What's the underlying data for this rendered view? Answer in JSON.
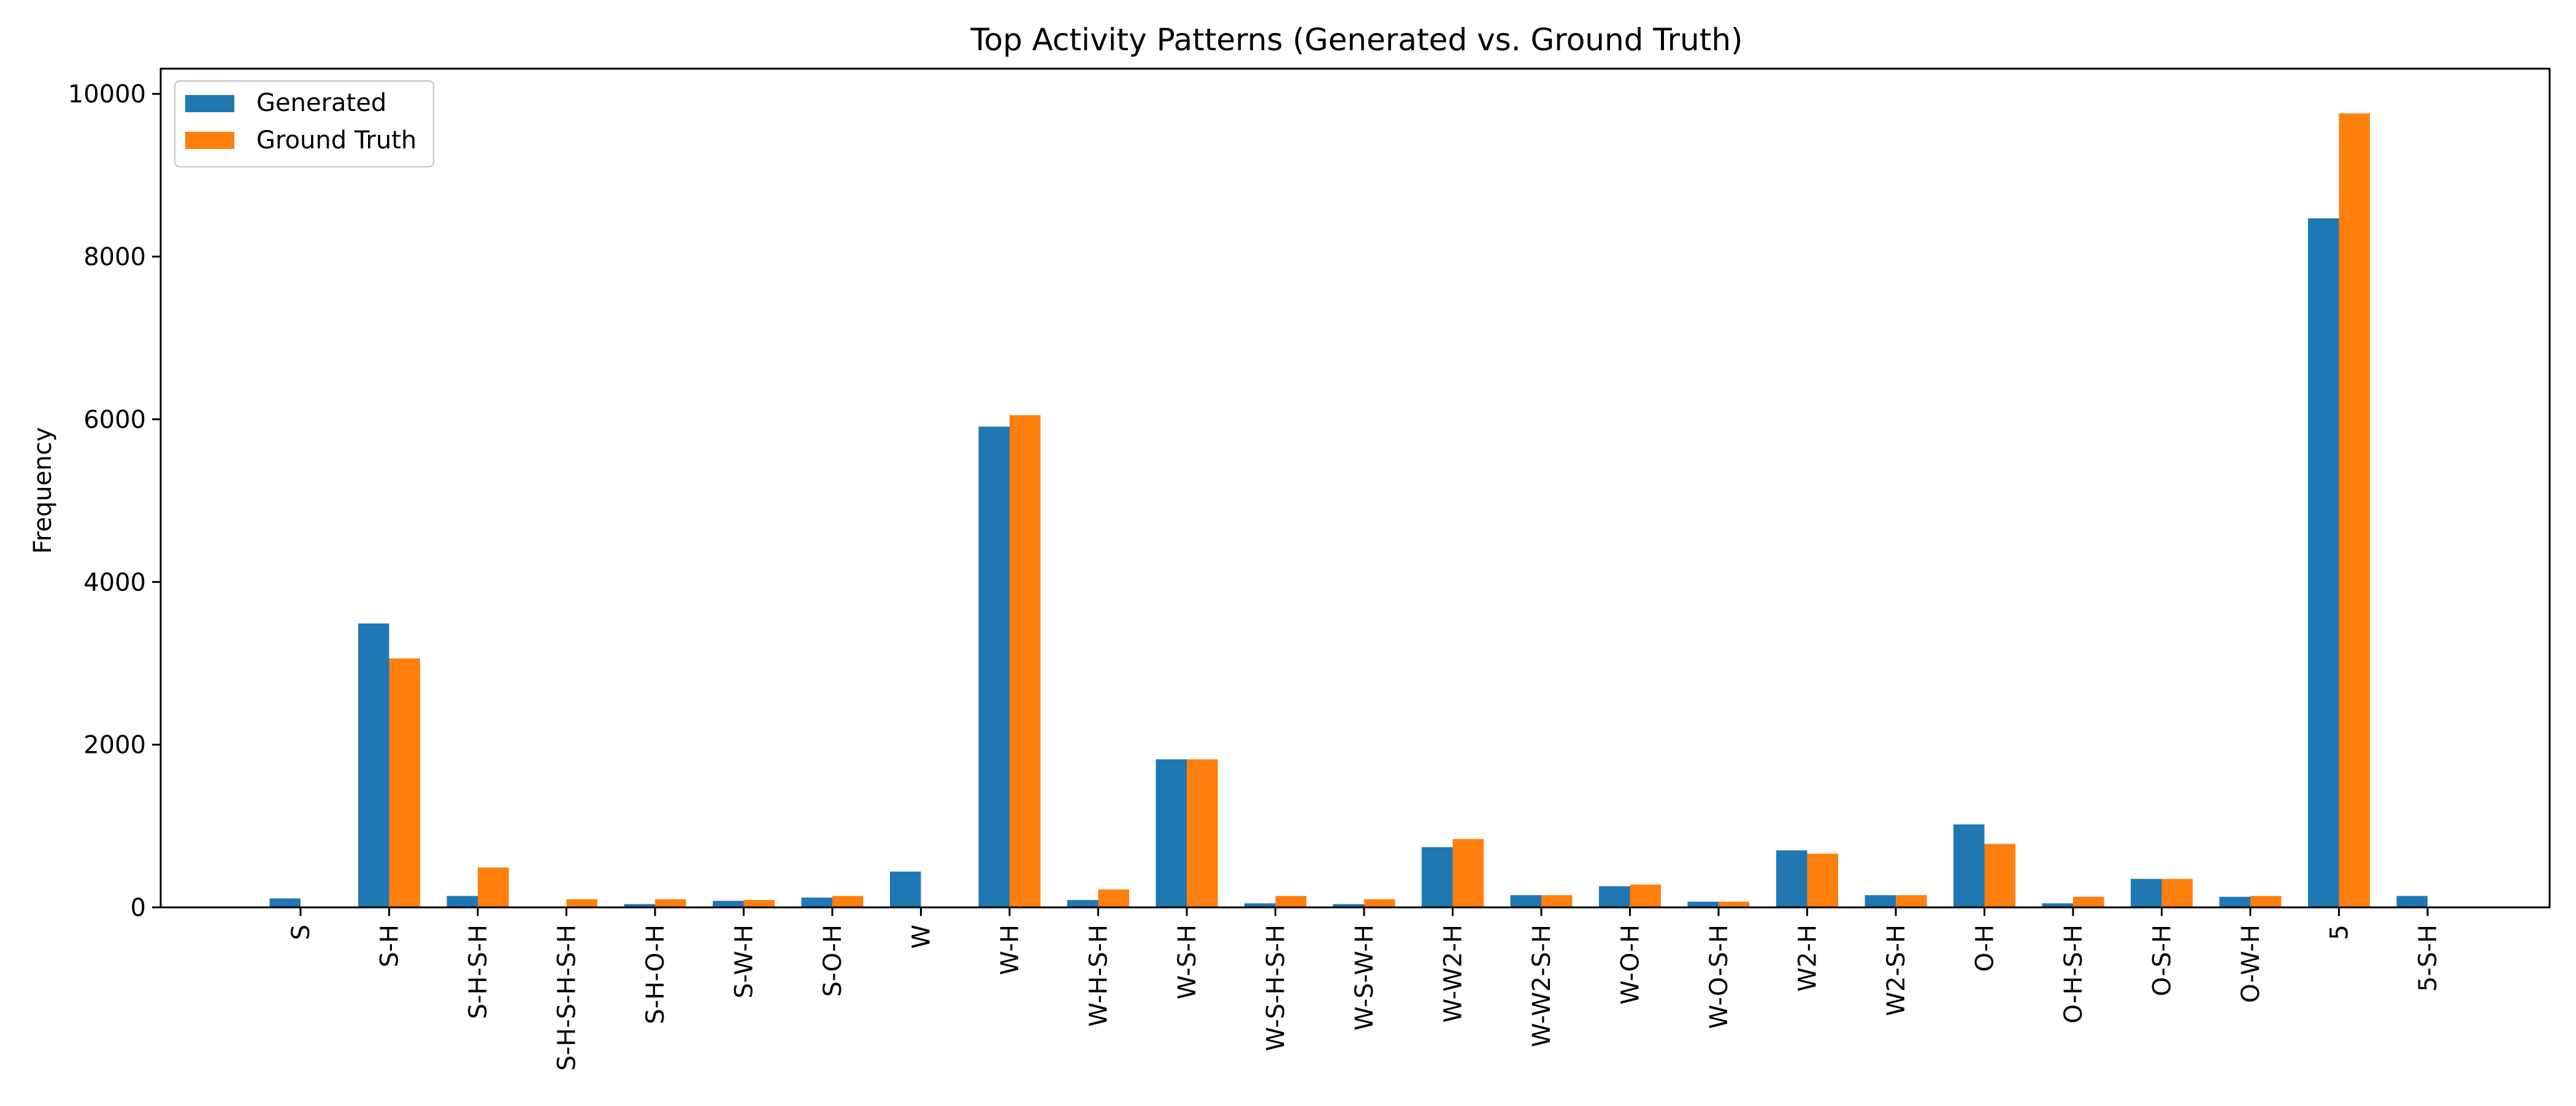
{
  "chart_data": {
    "type": "bar",
    "title": "Top Activity Patterns (Generated vs. Ground Truth)",
    "xlabel": "",
    "ylabel": "Frequency",
    "ylim": [
      0,
      10000
    ],
    "yticks": [
      0,
      2000,
      4000,
      6000,
      8000,
      10000
    ],
    "grid": false,
    "legend_position": "upper-left",
    "categories": [
      "S",
      "S-H",
      "S-H-S-H",
      "S-H-S-H-S-H",
      "S-H-O-H",
      "S-W-H",
      "S-O-H",
      "W",
      "W-H",
      "W-H-S-H",
      "W-S-H",
      "W-S-H-S-H",
      "W-S-W-H",
      "W-W2-H",
      "W-W2-S-H",
      "W-O-H",
      "W-O-S-H",
      "W2-H",
      "W2-S-H",
      "O-H",
      "O-H-S-H",
      "O-S-H",
      "O-W-H",
      "5",
      "5-S-H"
    ],
    "series": [
      {
        "name": "Generated",
        "color": "#1f77b4",
        "values": [
          110,
          3490,
          140,
          10,
          40,
          80,
          120,
          440,
          5910,
          90,
          1820,
          50,
          40,
          740,
          150,
          260,
          70,
          700,
          150,
          1020,
          50,
          350,
          130,
          8470,
          140
        ]
      },
      {
        "name": "Ground Truth",
        "color": "#ff7f0e",
        "values": [
          0,
          3060,
          490,
          100,
          100,
          90,
          140,
          0,
          6050,
          220,
          1820,
          140,
          100,
          840,
          150,
          280,
          70,
          660,
          150,
          780,
          130,
          350,
          140,
          9760,
          0
        ]
      }
    ]
  }
}
